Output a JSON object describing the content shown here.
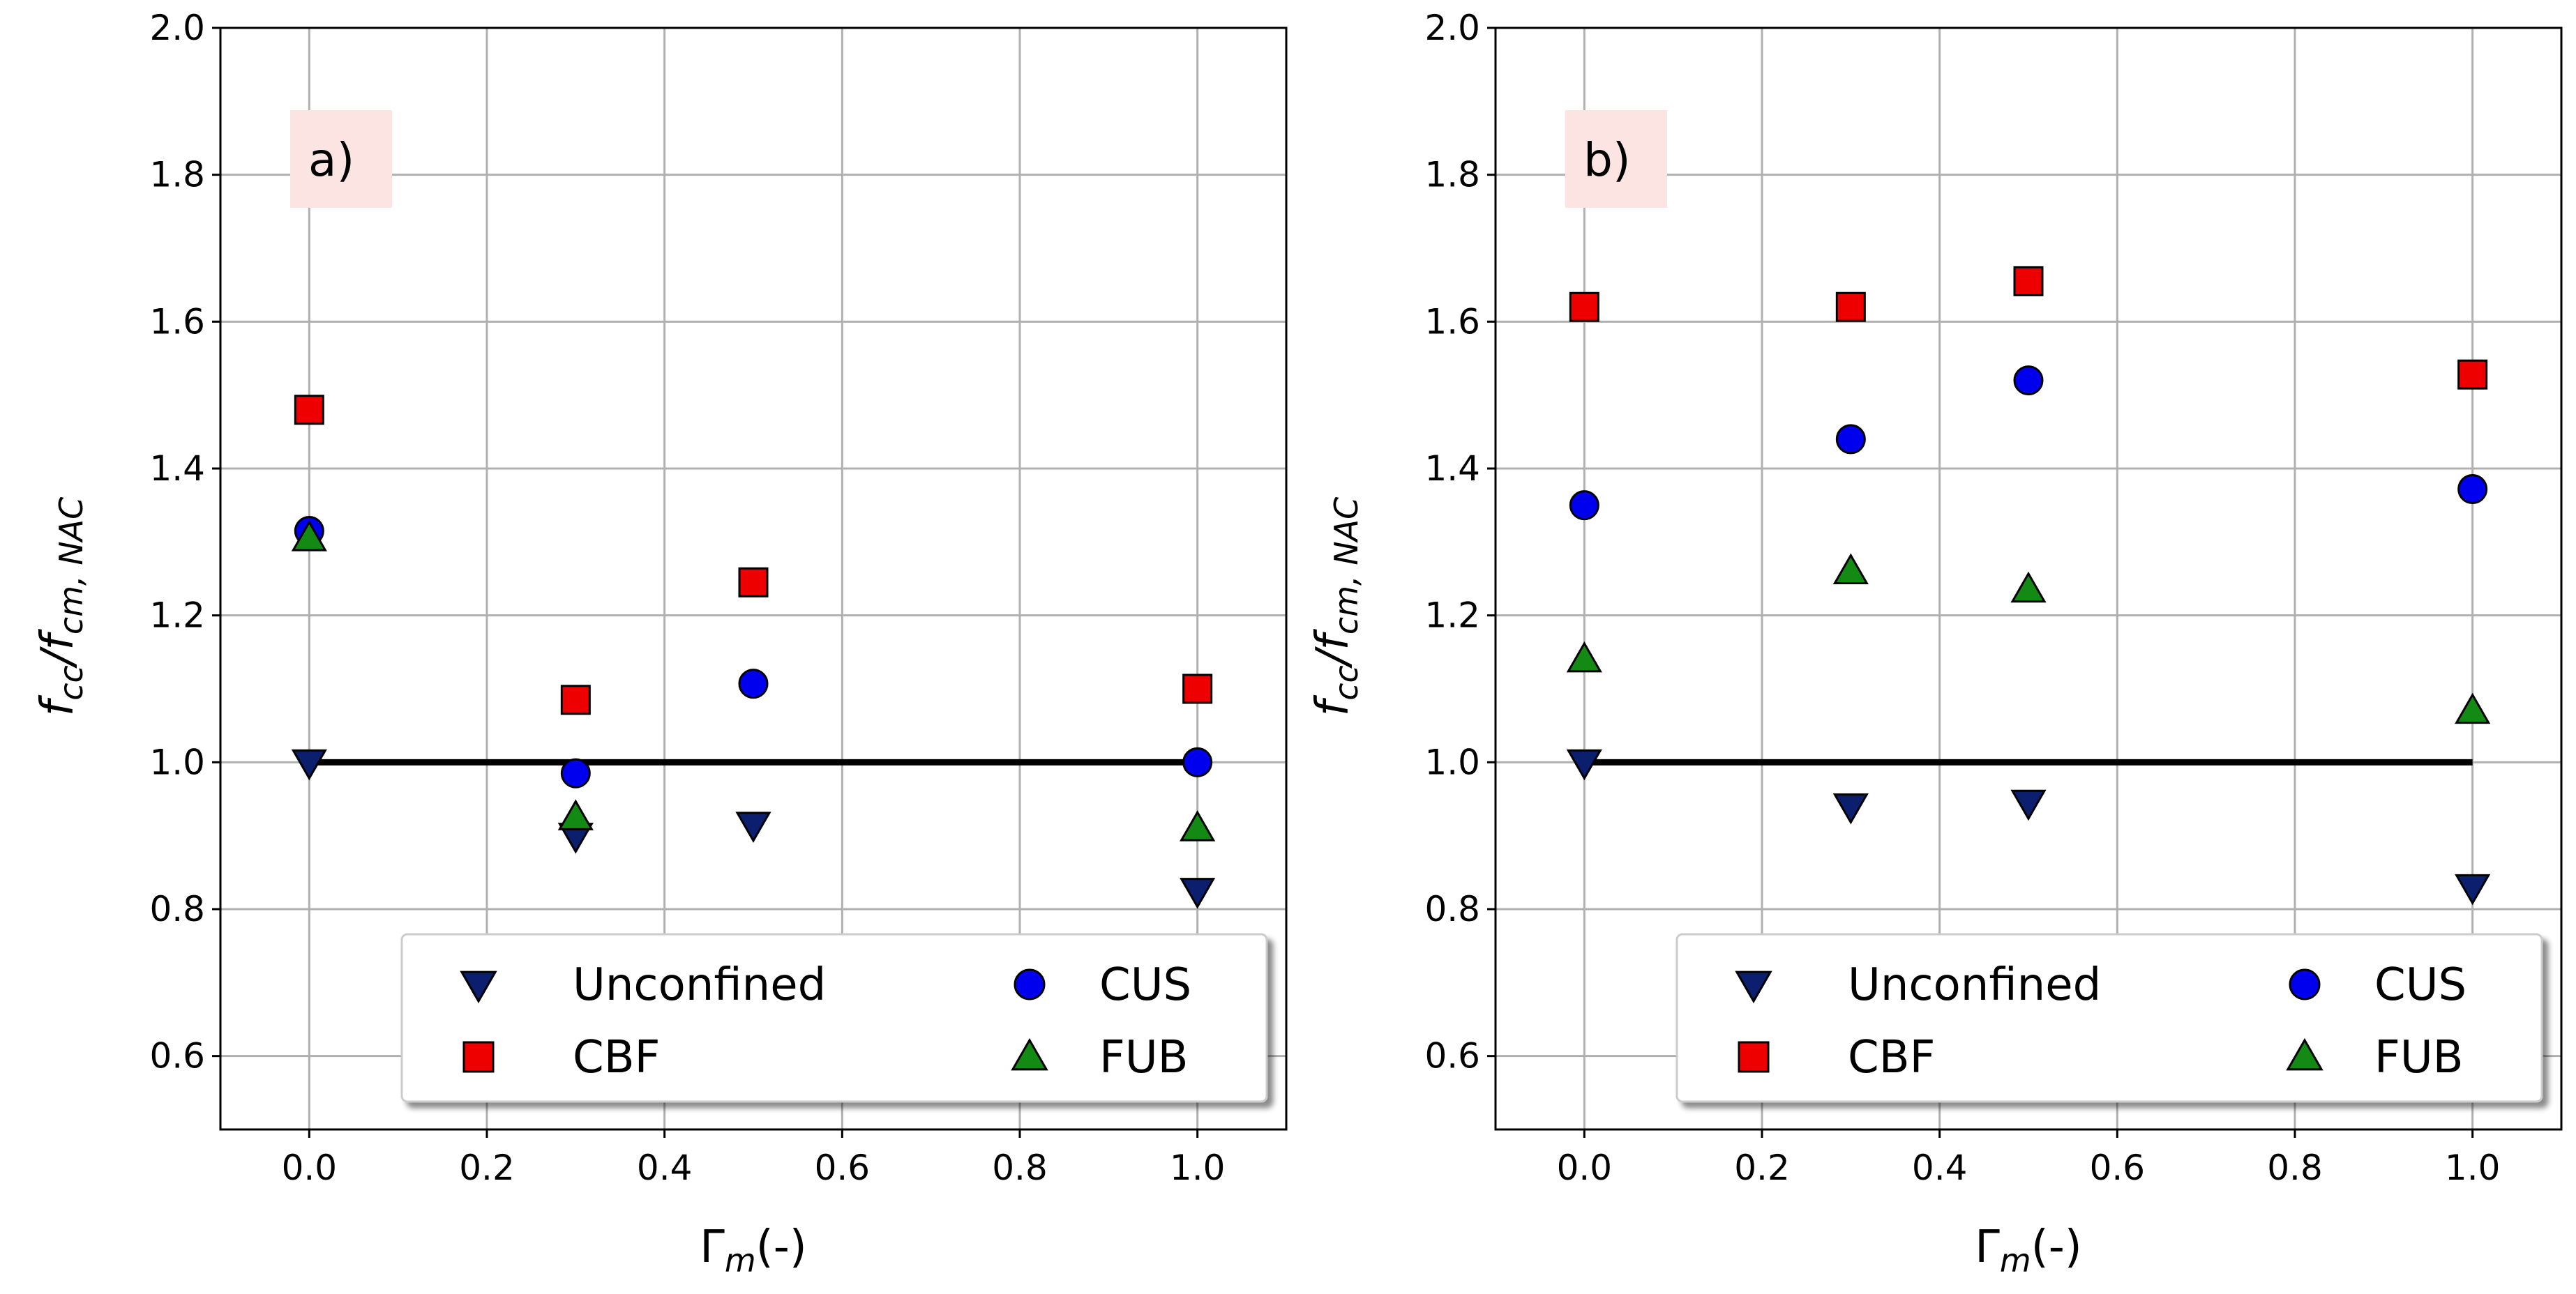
{
  "chart_data": [
    {
      "type": "scatter",
      "panel_label": "a)",
      "xlabel_main": "Γ",
      "xlabel_sub": "m",
      "xlabel_suffix": "(-)",
      "ylabel_main": "f",
      "ylabel_sub1": "cc",
      "ylabel_mid": "/f",
      "ylabel_sub2": "cm, NAC",
      "xlim": [
        -0.1,
        1.1
      ],
      "ylim": [
        0.5,
        2.0
      ],
      "xticks": [
        "0.0",
        "0.2",
        "0.4",
        "0.6",
        "0.8",
        "1.0"
      ],
      "yticks": [
        "0.6",
        "0.8",
        "1.0",
        "1.2",
        "1.4",
        "1.6",
        "1.8",
        "2.0"
      ],
      "grid": true,
      "legend_position": "lower-right",
      "reference_line": {
        "y": 1.0,
        "x": [
          0.0,
          1.0
        ]
      },
      "series": [
        {
          "name": "Unconfined",
          "marker": "triangle-down",
          "color": "#0b1f6e",
          "x": [
            0.0,
            0.3,
            0.5,
            1.0
          ],
          "y": [
            1.0,
            0.9,
            0.915,
            0.825
          ]
        },
        {
          "name": "CBF",
          "marker": "square",
          "color": "#ee0000",
          "x": [
            0.0,
            0.3,
            0.5,
            1.0
          ],
          "y": [
            1.48,
            1.085,
            1.245,
            1.1
          ]
        },
        {
          "name": "CUS",
          "marker": "circle",
          "color": "#0000ee",
          "x": [
            0.0,
            0.3,
            0.5,
            1.0
          ],
          "y": [
            1.315,
            0.985,
            1.107,
            1.0
          ]
        },
        {
          "name": "FUB",
          "marker": "triangle-up",
          "color": "#138a13",
          "x": [
            0.0,
            0.3,
            1.0
          ],
          "y": [
            1.305,
            0.925,
            0.91
          ]
        }
      ]
    },
    {
      "type": "scatter",
      "panel_label": "b)",
      "xlabel_main": "Γ",
      "xlabel_sub": "m",
      "xlabel_suffix": "(-)",
      "ylabel_main": "f",
      "ylabel_sub1": "cc",
      "ylabel_mid": "/f",
      "ylabel_sub2": "cm, NAC",
      "xlim": [
        -0.1,
        1.1
      ],
      "ylim": [
        0.5,
        2.0
      ],
      "xticks": [
        "0.0",
        "0.2",
        "0.4",
        "0.6",
        "0.8",
        "1.0"
      ],
      "yticks": [
        "0.6",
        "0.8",
        "1.0",
        "1.2",
        "1.4",
        "1.6",
        "1.8",
        "2.0"
      ],
      "grid": true,
      "legend_position": "lower-right",
      "reference_line": {
        "y": 1.0,
        "x": [
          0.0,
          1.0
        ]
      },
      "series": [
        {
          "name": "Unconfined",
          "marker": "triangle-down",
          "color": "#0b1f6e",
          "x": [
            0.0,
            0.3,
            0.5,
            1.0
          ],
          "y": [
            1.0,
            0.94,
            0.945,
            0.83
          ]
        },
        {
          "name": "CBF",
          "marker": "square",
          "color": "#ee0000",
          "x": [
            0.0,
            0.3,
            0.5,
            1.0
          ],
          "y": [
            1.62,
            1.62,
            1.655,
            1.528
          ]
        },
        {
          "name": "CUS",
          "marker": "circle",
          "color": "#0000ee",
          "x": [
            0.0,
            0.3,
            0.5,
            1.0
          ],
          "y": [
            1.35,
            1.44,
            1.52,
            1.372
          ]
        },
        {
          "name": "FUB",
          "marker": "triangle-up",
          "color": "#138a13",
          "x": [
            0.0,
            0.3,
            0.5,
            1.0
          ],
          "y": [
            1.14,
            1.26,
            1.235,
            1.07
          ]
        }
      ]
    }
  ]
}
